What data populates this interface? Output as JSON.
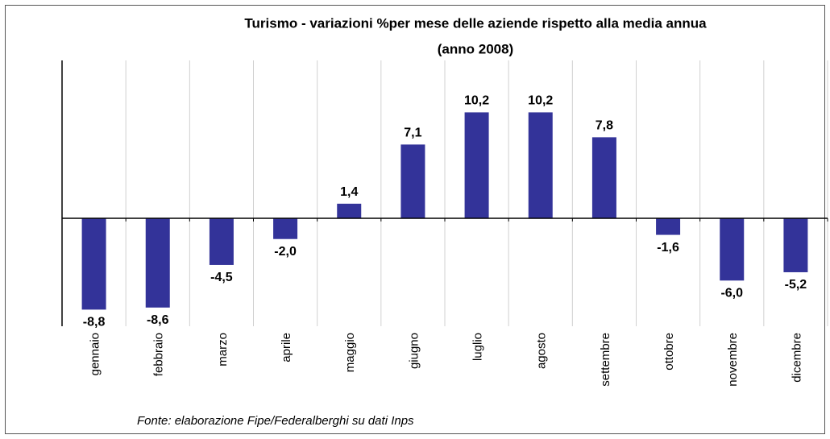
{
  "chart_data": {
    "type": "bar",
    "title": [
      "Turismo -  variazioni %per mese delle aziende rispetto alla media annua",
      "(anno 2008)"
    ],
    "source": "Fonte: elaborazione Fipe/Federalberghi su dati Inps",
    "categories": [
      "gennaio",
      "febbraio",
      "marzo",
      "aprile",
      "maggio",
      "giugno",
      "luglio",
      "agosto",
      "settembre",
      "ottobre",
      "novembre",
      "dicembre"
    ],
    "values": [
      -8.8,
      -8.6,
      -4.5,
      -2.0,
      1.4,
      7.1,
      10.2,
      10.2,
      7.8,
      -1.6,
      -6.0,
      -5.2
    ],
    "value_labels": [
      "-8,8",
      "-8,6",
      "-4,5",
      "-2,0",
      "1,4",
      "7,1",
      "10,2",
      "10,2",
      "7,8",
      "-1,6",
      "-6,0",
      "-5,2"
    ],
    "color": "#333399",
    "ylim": [
      -10.4,
      15.2
    ],
    "grid": true
  }
}
